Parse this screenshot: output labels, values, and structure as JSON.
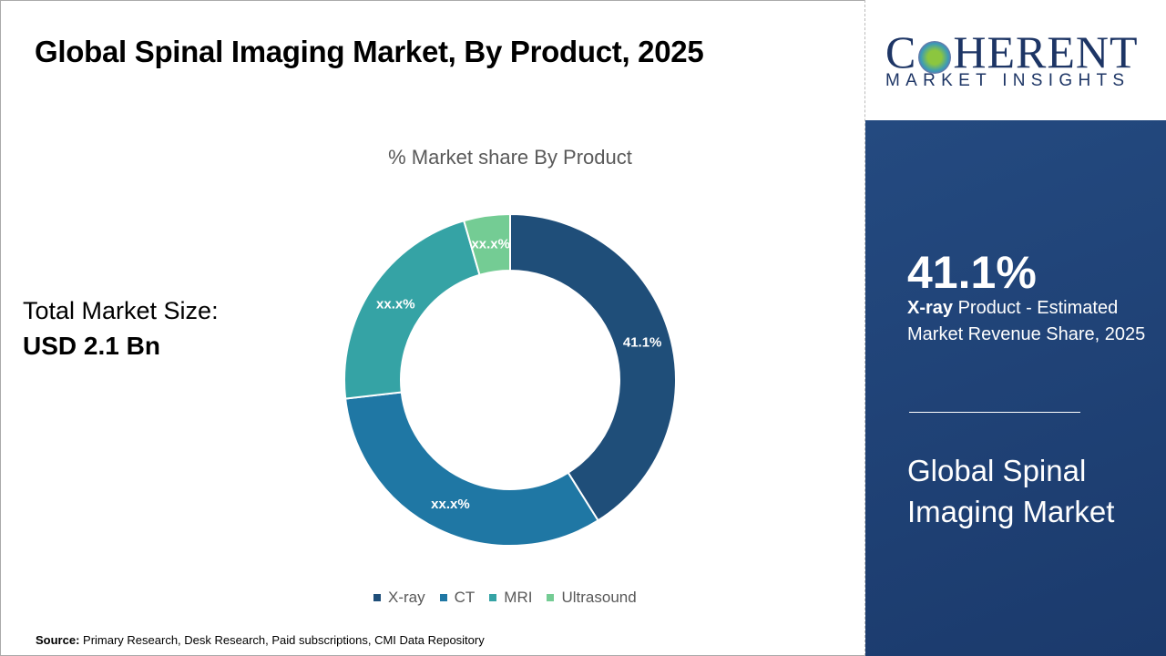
{
  "title": "Global Spinal Imaging Market, By Product, 2025",
  "logo": {
    "main": "COHERENT",
    "sub": "MARKET INSIGHTS"
  },
  "total": {
    "label": "Total Market Size:",
    "value": "USD 2.1 Bn"
  },
  "highlight": {
    "value": "41.1%",
    "segment": "X-ray",
    "text": " Product - Estimated Market Revenue Share, 2025",
    "market": "Global Spinal Imaging Market"
  },
  "source": {
    "label": "Source:",
    "text": " Primary Research, Desk Research, Paid subscriptions, CMI Data Repository"
  },
  "chart_data": {
    "type": "pie",
    "title": "% Market share By Product",
    "categories": [
      "X-ray",
      "CT",
      "MRI",
      "Ultrasound"
    ],
    "values": [
      41.1,
      32.1,
      22.3,
      4.5
    ],
    "data_labels": [
      "41.1%",
      "xx.x%",
      "xx.x%",
      "xx.x%"
    ],
    "colors": [
      "#1f4e79",
      "#1f77a4",
      "#35a3a5",
      "#74cc94"
    ],
    "donut": true,
    "legend": "bottom"
  }
}
